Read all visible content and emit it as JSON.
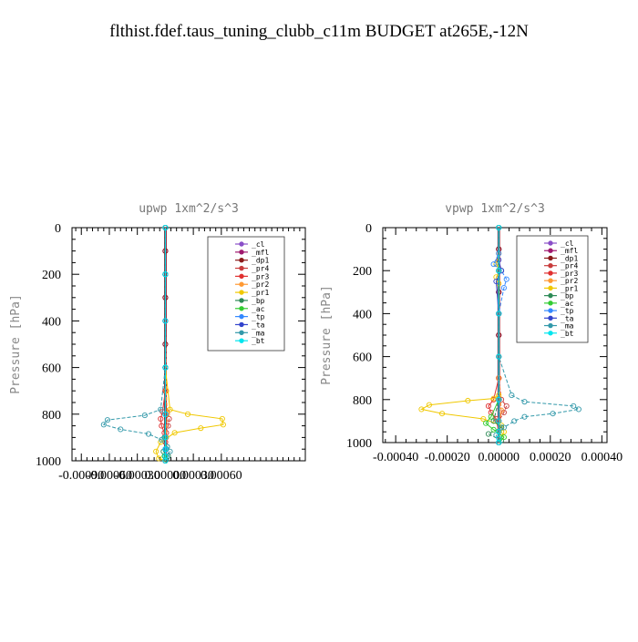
{
  "figure": {
    "title": "flthist.fdef.taus_tuning_clubb_c11m  BUDGET at265E,-12N"
  },
  "chart_data": [
    {
      "type": "line",
      "title": "upwp   1xm^2/s^3",
      "xlabel": "",
      "ylabel": "Pressure [hPa]",
      "xlim": [
        -0.001,
        0.0015
      ],
      "ylim": [
        1000,
        0
      ],
      "xticks": [
        "-0.00090",
        "-0.00060",
        "-0.00030",
        "0.00000",
        "0.00030",
        "0.00060"
      ],
      "xtick_values": [
        -0.0009,
        -0.0006,
        -0.0003,
        0.0,
        0.0003,
        0.0006
      ],
      "yticks": [
        0,
        200,
        400,
        600,
        800,
        1000
      ],
      "legend_position": "top-right",
      "series": [
        {
          "name": "_cl",
          "color": "#8a4fc8",
          "x": [
            0,
            0,
            0,
            0,
            0,
            0,
            0,
            0,
            0,
            0,
            0
          ],
          "y": [
            0,
            100,
            200,
            300,
            400,
            500,
            600,
            700,
            800,
            900,
            1000
          ]
        },
        {
          "name": "_mfl",
          "color": "#a0186e",
          "x": [
            0,
            0,
            0,
            0,
            0,
            0,
            0,
            0,
            0,
            0,
            0
          ],
          "y": [
            0,
            100,
            200,
            300,
            400,
            500,
            600,
            700,
            800,
            900,
            1000
          ]
        },
        {
          "name": "_dp1",
          "color": "#8b1a1a",
          "x": [
            0,
            0,
            0,
            0,
            0,
            0,
            0,
            0,
            0,
            0,
            0
          ],
          "y": [
            0,
            100,
            200,
            300,
            400,
            500,
            600,
            700,
            800,
            900,
            1000
          ]
        },
        {
          "name": "_pr4",
          "color": "#c83c3c",
          "x": [
            0,
            0,
            0,
            0,
            2e-05,
            4e-05,
            3e-05,
            1e-05,
            0,
            0
          ],
          "y": [
            0,
            200,
            400,
            700,
            790,
            820,
            850,
            880,
            920,
            1000
          ]
        },
        {
          "name": "_pr3",
          "color": "#e03030",
          "x": [
            0,
            0,
            0,
            0,
            -3e-05,
            -5e-05,
            -4e-05,
            -1e-05,
            0,
            0
          ],
          "y": [
            0,
            200,
            400,
            700,
            790,
            820,
            850,
            880,
            920,
            1000
          ]
        },
        {
          "name": "_pr2",
          "color": "#ff9933",
          "x": [
            0,
            0,
            0,
            1e-05,
            2e-05,
            1e-05,
            0,
            0
          ],
          "y": [
            0,
            200,
            400,
            700,
            800,
            900,
            950,
            1000
          ]
        },
        {
          "name": "_pr1",
          "color": "#f0c800",
          "x": [
            0,
            0,
            0,
            5e-05,
            0.00024,
            0.00061,
            0.00062,
            0.00038,
            0.0001,
            -5e-05,
            -0.0001,
            -7e-05,
            0
          ],
          "y": [
            0,
            200,
            600,
            780,
            800,
            820,
            845,
            860,
            880,
            920,
            960,
            990,
            1000
          ]
        },
        {
          "name": "_bp",
          "color": "#2e8b57",
          "x": [
            0,
            0,
            0,
            0,
            -1e-05,
            2e-05,
            -2e-05,
            3e-05,
            1e-05,
            0
          ],
          "y": [
            0,
            200,
            600,
            800,
            900,
            940,
            960,
            980,
            995,
            1000
          ]
        },
        {
          "name": "_ac",
          "color": "#33cc33",
          "x": [
            0,
            0,
            0,
            0,
            0,
            0,
            1e-05,
            -1e-05,
            0
          ],
          "y": [
            0,
            200,
            400,
            600,
            800,
            900,
            950,
            980,
            1000
          ]
        },
        {
          "name": "_tp",
          "color": "#3388ff",
          "x": [
            0,
            0,
            0,
            0,
            0,
            0,
            1e-05,
            0,
            0
          ],
          "y": [
            0,
            200,
            400,
            600,
            800,
            900,
            950,
            980,
            1000
          ]
        },
        {
          "name": "_ta",
          "color": "#3344cc",
          "x": [
            0,
            0,
            0,
            0,
            0,
            0,
            0,
            0,
            0
          ],
          "y": [
            0,
            200,
            400,
            600,
            800,
            900,
            950,
            980,
            1000
          ]
        },
        {
          "name": "_ma",
          "color": "#3399aa",
          "x": [
            0,
            0,
            0,
            -5e-05,
            -0.00022,
            -0.00062,
            -0.00066,
            -0.00048,
            -0.00018,
            -4e-05,
            2e-05,
            5e-05,
            2e-05,
            0
          ],
          "y": [
            0,
            200,
            600,
            780,
            805,
            825,
            845,
            865,
            885,
            910,
            940,
            960,
            985,
            1000
          ]
        },
        {
          "name": "_bt",
          "color": "#00e5ee",
          "x": [
            0,
            0,
            0,
            0,
            0,
            0,
            0,
            0,
            0
          ],
          "y": [
            0,
            200,
            400,
            600,
            800,
            900,
            950,
            980,
            1000
          ]
        }
      ]
    },
    {
      "type": "line",
      "title": "vpwp   1xm^2/s^3",
      "xlabel": "",
      "ylabel": "Pressure [hPa]",
      "xlim": [
        -0.00045,
        0.00042
      ],
      "ylim": [
        1000,
        0
      ],
      "xticks": [
        "-0.00040",
        "-0.00020",
        "0.00000",
        "0.00020",
        "0.00040"
      ],
      "xtick_values": [
        -0.0004,
        -0.0002,
        0.0,
        0.0002,
        0.0004
      ],
      "yticks": [
        0,
        200,
        400,
        600,
        800,
        1000
      ],
      "legend_position": "top-right",
      "series": [
        {
          "name": "_cl",
          "color": "#8a4fc8",
          "x": [
            0,
            0,
            0,
            0,
            0,
            0,
            0,
            0,
            0,
            0,
            0
          ],
          "y": [
            0,
            100,
            200,
            300,
            400,
            500,
            600,
            700,
            800,
            900,
            1000
          ]
        },
        {
          "name": "_mfl",
          "color": "#a0186e",
          "x": [
            0,
            0,
            0,
            0,
            0,
            0,
            0,
            0,
            0,
            0,
            0
          ],
          "y": [
            0,
            100,
            200,
            300,
            400,
            500,
            600,
            700,
            800,
            900,
            1000
          ]
        },
        {
          "name": "_dp1",
          "color": "#8b1a1a",
          "x": [
            0,
            0,
            0,
            0,
            0,
            0,
            0,
            0,
            0,
            0,
            0
          ],
          "y": [
            0,
            100,
            200,
            300,
            400,
            500,
            600,
            700,
            800,
            900,
            1000
          ]
        },
        {
          "name": "_pr4",
          "color": "#c83c3c",
          "x": [
            0,
            0,
            0,
            0,
            1e-05,
            3e-05,
            2e-05,
            0,
            0
          ],
          "y": [
            0,
            200,
            400,
            700,
            800,
            830,
            860,
            900,
            1000
          ]
        },
        {
          "name": "_pr3",
          "color": "#e03030",
          "x": [
            0,
            0,
            0,
            0,
            -2e-05,
            -4e-05,
            -3e-05,
            -1e-05,
            0,
            0
          ],
          "y": [
            0,
            200,
            400,
            700,
            800,
            830,
            860,
            890,
            950,
            1000
          ]
        },
        {
          "name": "_pr2",
          "color": "#ff9933",
          "x": [
            0,
            0,
            0,
            0,
            1e-05,
            0,
            0
          ],
          "y": [
            0,
            200,
            400,
            700,
            850,
            950,
            1000
          ]
        },
        {
          "name": "_pr1",
          "color": "#f0c800",
          "x": [
            0,
            0,
            -1e-05,
            1e-05,
            -1e-05,
            0,
            0,
            -2e-05,
            -0.00012,
            -0.00027,
            -0.0003,
            -0.00022,
            -6e-05,
            1e-05,
            2e-05,
            1e-05,
            0
          ],
          "y": [
            0,
            120,
            170,
            200,
            230,
            260,
            780,
            795,
            805,
            825,
            845,
            865,
            890,
            920,
            950,
            975,
            1000
          ]
        },
        {
          "name": "_bp",
          "color": "#2e8b57",
          "x": [
            0,
            0,
            0,
            0,
            -2e-05,
            1e-05,
            -4e-05,
            1e-05,
            0
          ],
          "y": [
            0,
            200,
            400,
            800,
            900,
            930,
            960,
            990,
            1000
          ]
        },
        {
          "name": "_ac",
          "color": "#33cc33",
          "x": [
            0,
            0,
            0,
            0,
            -3e-05,
            -5e-05,
            -2e-05,
            2e-05,
            0
          ],
          "y": [
            0,
            200,
            400,
            800,
            880,
            910,
            940,
            975,
            1000
          ]
        },
        {
          "name": "_tp",
          "color": "#3388ff",
          "x": [
            0,
            0,
            -2e-05,
            1e-05,
            3e-05,
            2e-05,
            0,
            0,
            0
          ],
          "y": [
            0,
            120,
            170,
            200,
            240,
            280,
            400,
            800,
            1000
          ]
        },
        {
          "name": "_ta",
          "color": "#3344cc",
          "x": [
            0,
            0,
            1e-05,
            -1e-05,
            0,
            0,
            0
          ],
          "y": [
            0,
            150,
            200,
            250,
            400,
            800,
            1000
          ]
        },
        {
          "name": "_ma",
          "color": "#3399aa",
          "x": [
            0,
            0,
            0,
            5e-05,
            0.0001,
            0.00029,
            0.00031,
            0.00021,
            0.0001,
            6e-05,
            2e-05,
            -1e-05,
            0
          ],
          "y": [
            0,
            200,
            600,
            780,
            810,
            830,
            845,
            865,
            880,
            900,
            930,
            965,
            1000
          ]
        },
        {
          "name": "_bt",
          "color": "#00e5ee",
          "x": [
            0,
            0,
            0,
            0,
            0,
            0,
            0,
            0,
            0
          ],
          "y": [
            0,
            200,
            400,
            600,
            800,
            900,
            950,
            980,
            1000
          ]
        }
      ]
    }
  ]
}
